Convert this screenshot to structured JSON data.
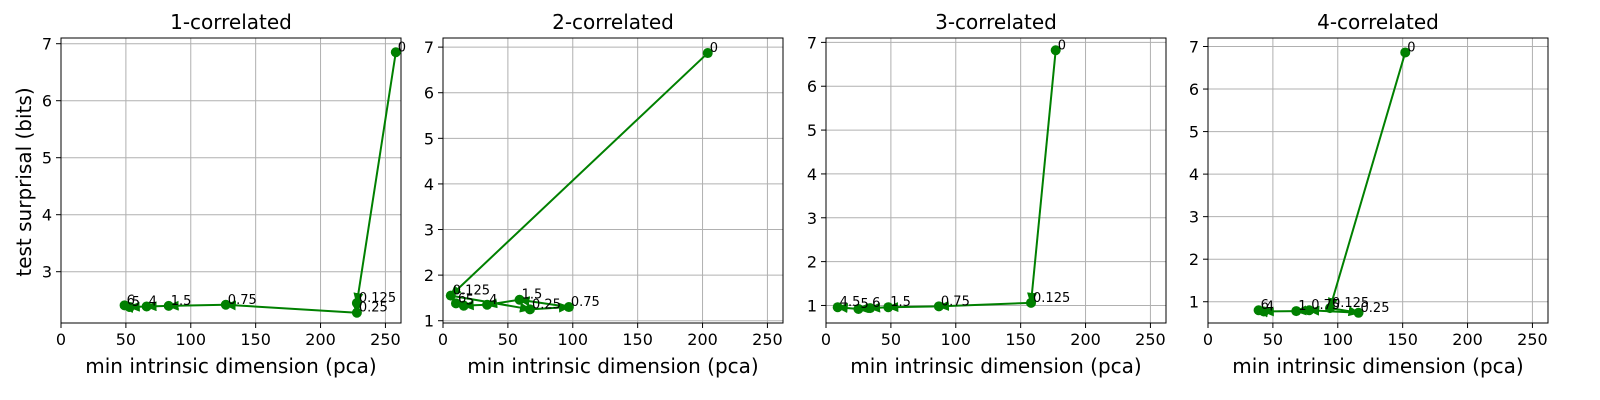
{
  "figure": {
    "ylabel": "test surprisal (bits)",
    "color": "#008000"
  },
  "chart_data": [
    {
      "type": "line",
      "title": "1-correlated",
      "xlabel": "min intrinsic dimension (pca)",
      "xlim": [
        0,
        262
      ],
      "ylim": [
        2.1,
        7.1
      ],
      "xticks": [
        0,
        50,
        100,
        150,
        200,
        250
      ],
      "yticks": [
        3,
        4,
        5,
        6,
        7
      ],
      "grid": true,
      "points": [
        {
          "label": "0",
          "x": 258,
          "y": 6.85
        },
        {
          "label": "0.125",
          "x": 228,
          "y": 2.45
        },
        {
          "label": "0.25",
          "x": 228,
          "y": 2.28
        },
        {
          "label": "0.75",
          "x": 127,
          "y": 2.42
        },
        {
          "label": "1.5",
          "x": 83,
          "y": 2.4
        },
        {
          "label": "4",
          "x": 66,
          "y": 2.39
        },
        {
          "label": "5",
          "x": 53,
          "y": 2.38
        },
        {
          "label": "6",
          "x": 49,
          "y": 2.41
        }
      ]
    },
    {
      "type": "line",
      "title": "2-correlated",
      "xlabel": "min intrinsic dimension (pca)",
      "xlim": [
        0,
        262
      ],
      "ylim": [
        0.95,
        7.2
      ],
      "xticks": [
        0,
        50,
        100,
        150,
        200,
        250
      ],
      "yticks": [
        1,
        2,
        3,
        4,
        5,
        6,
        7
      ],
      "grid": true,
      "points": [
        {
          "label": "0",
          "x": 204,
          "y": 6.87
        },
        {
          "label": "0.125",
          "x": 6,
          "y": 1.55
        },
        {
          "label": "0.25",
          "x": 67,
          "y": 1.25
        },
        {
          "label": "0.75",
          "x": 97,
          "y": 1.3
        },
        {
          "label": "1.5",
          "x": 59,
          "y": 1.46
        },
        {
          "label": "4",
          "x": 34,
          "y": 1.35
        },
        {
          "label": "5",
          "x": 16,
          "y": 1.33
        },
        {
          "label": "6",
          "x": 10,
          "y": 1.38
        }
      ]
    },
    {
      "type": "line",
      "title": "3-correlated",
      "xlabel": "min intrinsic dimension (pca)",
      "xlim": [
        0,
        262
      ],
      "ylim": [
        0.6,
        7.1
      ],
      "xticks": [
        0,
        50,
        100,
        150,
        200,
        250
      ],
      "yticks": [
        1,
        2,
        3,
        4,
        5,
        6,
        7
      ],
      "grid": true,
      "points": [
        {
          "label": "0",
          "x": 177,
          "y": 6.82
        },
        {
          "label": "0.125",
          "x": 158,
          "y": 1.06
        },
        {
          "label": "0.75",
          "x": 87,
          "y": 0.98
        },
        {
          "label": "1.5",
          "x": 48,
          "y": 0.96
        },
        {
          "label": "6",
          "x": 34,
          "y": 0.94
        },
        {
          "label": "5",
          "x": 25,
          "y": 0.92
        },
        {
          "label": "4.5",
          "x": 9,
          "y": 0.96
        }
      ]
    },
    {
      "type": "line",
      "title": "4-correlated",
      "xlabel": "min intrinsic dimension (pca)",
      "xlim": [
        0,
        262
      ],
      "ylim": [
        0.5,
        7.2
      ],
      "xticks": [
        0,
        50,
        100,
        150,
        200,
        250
      ],
      "yticks": [
        1,
        2,
        3,
        4,
        5,
        6,
        7
      ],
      "grid": true,
      "points": [
        {
          "label": "0",
          "x": 152,
          "y": 6.86
        },
        {
          "label": "0.125",
          "x": 94,
          "y": 0.85
        },
        {
          "label": "0.25",
          "x": 116,
          "y": 0.74
        },
        {
          "label": "0.75",
          "x": 78,
          "y": 0.8
        },
        {
          "label": "1",
          "x": 68,
          "y": 0.78
        },
        {
          "label": "4",
          "x": 43,
          "y": 0.77
        },
        {
          "label": "6",
          "x": 39,
          "y": 0.8
        }
      ]
    }
  ]
}
